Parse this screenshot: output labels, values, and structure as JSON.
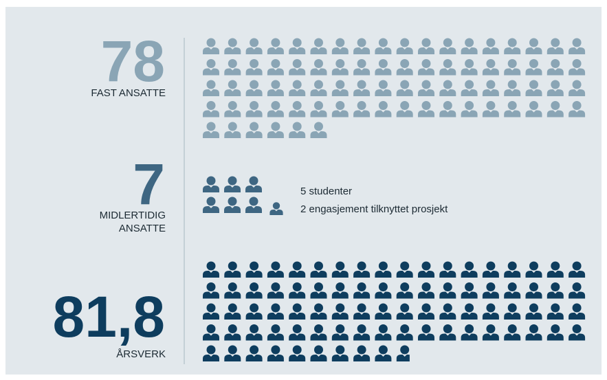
{
  "chart_data": {
    "type": "pictogram",
    "sections": [
      {
        "value": 78,
        "value_label": "78",
        "label_lines": [
          "FAST ANSATTE"
        ],
        "color": "#8aa5b5"
      },
      {
        "value": 7,
        "value_label": "7",
        "label_lines": [
          "MIDLERTIDIG",
          "ANSATTE"
        ],
        "color": "#3e6682",
        "notes": [
          "5 studenter",
          "2 engasjement tilknyttet prosjekt"
        ]
      },
      {
        "value": 81.8,
        "value_label": "81,8",
        "label_lines": [
          "ÅRSVERK"
        ],
        "color": "#0e3d5e"
      }
    ]
  }
}
